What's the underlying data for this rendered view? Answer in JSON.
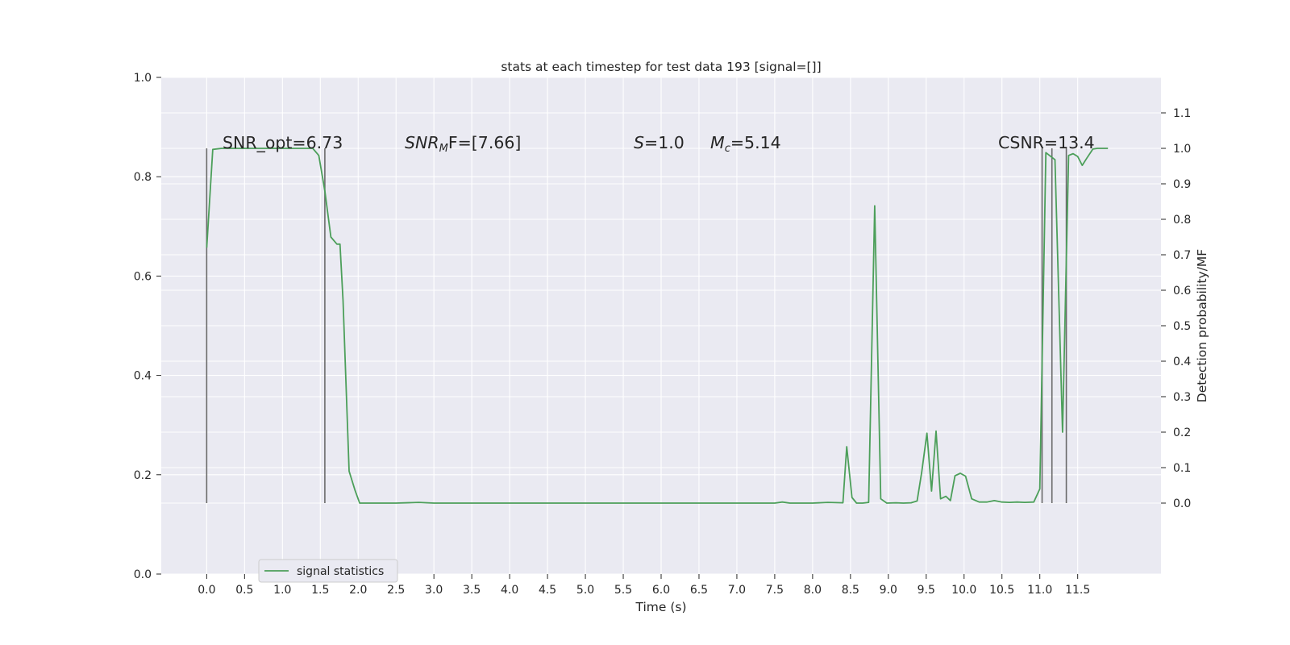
{
  "chart_data": {
    "type": "line",
    "title": "stats at each timestep for test data 193 [signal=[]]",
    "xlabel": "Time (s)",
    "ylabel": "",
    "y2label": "Detection probability/MF",
    "xlim": [
      -0.6,
      12.6
    ],
    "ylim": [
      0.0,
      1.0
    ],
    "y2lim": [
      -0.2,
      1.2
    ],
    "x_ticks": [
      0.0,
      0.5,
      1.0,
      1.5,
      2.0,
      2.5,
      3.0,
      3.5,
      4.0,
      4.5,
      5.0,
      5.5,
      6.0,
      6.5,
      7.0,
      7.5,
      8.0,
      8.5,
      9.0,
      9.5,
      10.0,
      10.5,
      11.0,
      11.5
    ],
    "x_tick_labels": [
      "0.0",
      "0.5",
      "1.0",
      "1.5",
      "2.0",
      "2.5",
      "3.0",
      "3.5",
      "4.0",
      "4.5",
      "5.0",
      "5.5",
      "6.0",
      "6.5",
      "7.0",
      "7.5",
      "8.0",
      "8.5",
      "9.0",
      "9.5",
      "10.0",
      "10.5",
      "11.0",
      "11.5"
    ],
    "y_ticks": [
      0.0,
      0.2,
      0.4,
      0.6,
      0.8,
      1.0
    ],
    "y_tick_labels": [
      "0.0",
      "0.2",
      "0.4",
      "0.6",
      "0.8",
      "1.0"
    ],
    "y2_ticks": [
      0.0,
      0.1,
      0.2,
      0.3,
      0.4,
      0.5,
      0.6,
      0.7,
      0.8,
      0.9,
      1.0,
      1.1
    ],
    "y2_tick_labels": [
      "0.0",
      "0.1",
      "0.2",
      "0.3",
      "0.4",
      "0.5",
      "0.6",
      "0.7",
      "0.8",
      "0.9",
      "1.0",
      "1.1"
    ],
    "grid": true,
    "legend_position": "lower-left",
    "colors": {
      "series": "#4c9f5a",
      "vline": "#6b6b6b",
      "plot_bg": "#eaeaf2",
      "grid": "#ffffff"
    },
    "series": [
      {
        "name": "signal statistics",
        "axis": "right",
        "x": [
          0.0,
          0.08,
          0.2,
          0.4,
          0.6,
          0.8,
          1.0,
          1.2,
          1.4,
          1.48,
          1.56,
          1.64,
          1.72,
          1.76,
          1.8,
          1.88,
          1.96,
          2.02,
          2.2,
          2.5,
          2.8,
          3.0,
          3.5,
          4.0,
          4.5,
          5.0,
          5.5,
          6.0,
          6.5,
          7.0,
          7.5,
          7.6,
          7.7,
          8.0,
          8.2,
          8.4,
          8.45,
          8.52,
          8.58,
          8.66,
          8.74,
          8.82,
          8.9,
          8.98,
          9.1,
          9.2,
          9.3,
          9.38,
          9.44,
          9.51,
          9.57,
          9.63,
          9.69,
          9.76,
          9.82,
          9.88,
          9.95,
          10.02,
          10.1,
          10.2,
          10.3,
          10.4,
          10.5,
          10.6,
          10.7,
          10.8,
          10.92,
          11.0,
          11.08,
          11.2,
          11.3,
          11.38,
          11.44,
          11.5,
          11.56,
          11.62,
          11.7,
          11.76,
          11.82,
          11.9
        ],
        "y": [
          0.72,
          0.997,
          1.0,
          1.0,
          1.0,
          1.0,
          1.0,
          1.0,
          1.0,
          0.98,
          0.88,
          0.75,
          0.73,
          0.73,
          0.57,
          0.09,
          0.035,
          0.0,
          0.0,
          0.0,
          0.002,
          0.0,
          0.0,
          0.0,
          0.0,
          0.0,
          0.0,
          0.0,
          0.0,
          0.0,
          0.0,
          0.003,
          0.0,
          0.0,
          0.002,
          0.001,
          0.159,
          0.016,
          0.0,
          0.0,
          0.002,
          0.838,
          0.012,
          0.0,
          0.001,
          0.0,
          0.001,
          0.006,
          0.087,
          0.197,
          0.034,
          0.203,
          0.012,
          0.019,
          0.007,
          0.077,
          0.084,
          0.076,
          0.012,
          0.003,
          0.003,
          0.007,
          0.003,
          0.002,
          0.003,
          0.002,
          0.003,
          0.04,
          0.988,
          0.968,
          0.2,
          0.98,
          0.985,
          0.977,
          0.952,
          0.972,
          0.998,
          1.0,
          1.0,
          1.0
        ]
      }
    ],
    "vlines_x": [
      0.0,
      1.56,
      11.03,
      11.16,
      11.35
    ],
    "vlines_range": [
      0.0,
      1.0
    ],
    "annotations": [
      {
        "label": "SNR_opt=6.73"
      },
      {
        "label": "SNRMF=[7.66]",
        "main": "SNR",
        "sub": "M",
        "rest": "F=[7.66]"
      },
      {
        "label": "S=1.0",
        "main": "S",
        "rest": "=1.0"
      },
      {
        "label": "Mc=5.14",
        "main": "M",
        "sub": "c",
        "rest": "=5.14"
      },
      {
        "label": "CSNR=13.4"
      }
    ]
  }
}
